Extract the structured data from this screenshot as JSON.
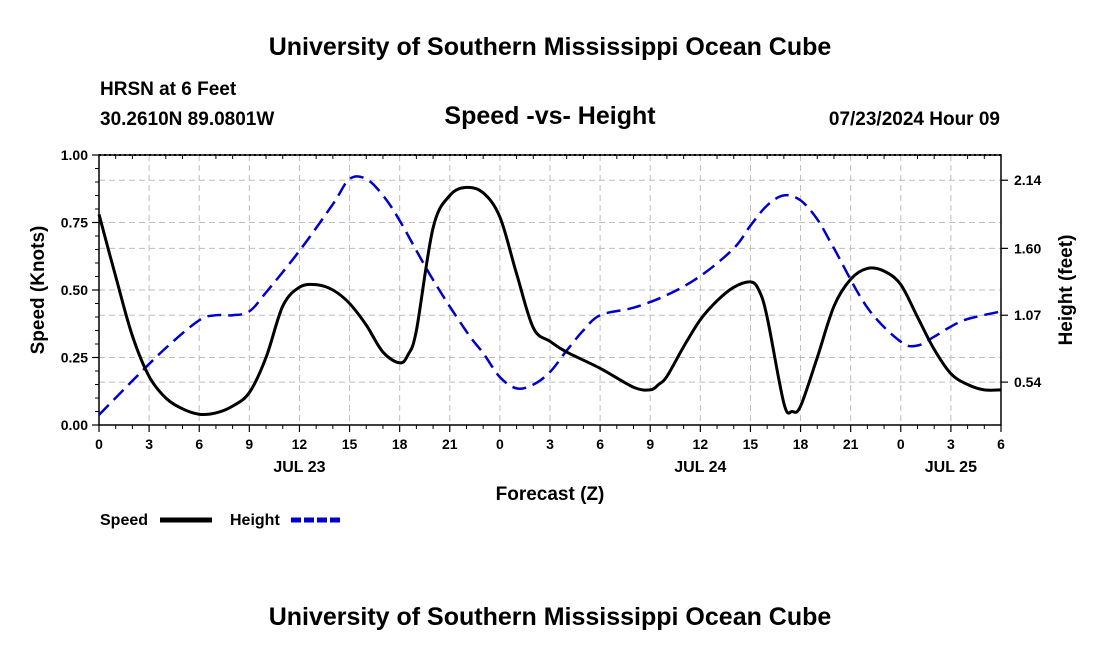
{
  "header": {
    "title": "University of Southern Mississippi Ocean Cube",
    "station": "HRSN at 6 Feet",
    "location": "30.2610N  89.0801W",
    "datetime": "07/23/2024 Hour 09",
    "footer_title": "University of Southern Mississippi Ocean Cube"
  },
  "chart_data": {
    "type": "line",
    "title": "Speed -vs- Height",
    "xlabel": "Forecast (Z)",
    "ylabel_left": "Speed (Knots)",
    "ylabel_right": "Height (feet)",
    "x_unit": "hours since JUL 23 00Z",
    "xlim": [
      0,
      54
    ],
    "ylim_left": [
      0,
      1.0
    ],
    "ylim_right": [
      0.2,
      2.34
    ],
    "x_ticks": [
      0,
      3,
      6,
      9,
      12,
      15,
      18,
      21,
      24,
      27,
      30,
      33,
      36,
      39,
      42,
      45,
      48,
      51,
      54
    ],
    "x_tick_labels": [
      "0",
      "3",
      "6",
      "9",
      "12",
      "15",
      "18",
      "21",
      "0",
      "3",
      "6",
      "9",
      "12",
      "15",
      "18",
      "21",
      "0",
      "3",
      "6"
    ],
    "y_ticks_left": [
      0.0,
      0.25,
      0.5,
      0.75,
      1.0
    ],
    "y_tick_labels_left": [
      "0.00",
      "0.25",
      "0.50",
      "0.75",
      "1.00"
    ],
    "y_ticks_right": [
      0.54,
      1.07,
      1.6,
      2.14
    ],
    "y_tick_labels_right": [
      "0.54",
      "1.07",
      "1.60",
      "2.14"
    ],
    "day_labels": [
      {
        "x": 12,
        "label": "JUL 23"
      },
      {
        "x": 36,
        "label": "JUL 24"
      },
      {
        "x": 51,
        "label": "JUL 25"
      }
    ],
    "grid": true,
    "legend_position": "bottom-left",
    "series": [
      {
        "name": "Speed",
        "axis": "left",
        "color": "#000000",
        "style": "solid",
        "x": [
          0,
          1,
          2,
          3,
          4,
          5,
          6,
          7,
          8,
          9,
          10,
          11,
          12,
          13,
          14,
          15,
          16,
          17,
          18,
          18.5,
          19,
          20,
          21,
          22,
          23,
          24,
          25,
          26,
          27,
          28,
          30,
          32,
          33,
          33.5,
          34,
          35,
          36,
          37,
          38,
          39,
          39.5,
          40,
          41,
          41.5,
          42,
          43,
          44,
          45,
          46,
          47,
          48,
          49,
          50,
          51,
          52,
          53,
          54
        ],
        "values": [
          0.78,
          0.55,
          0.33,
          0.18,
          0.1,
          0.06,
          0.04,
          0.045,
          0.07,
          0.12,
          0.25,
          0.44,
          0.51,
          0.52,
          0.5,
          0.45,
          0.37,
          0.27,
          0.23,
          0.26,
          0.35,
          0.73,
          0.85,
          0.88,
          0.86,
          0.77,
          0.56,
          0.36,
          0.31,
          0.27,
          0.21,
          0.14,
          0.13,
          0.15,
          0.18,
          0.29,
          0.39,
          0.46,
          0.51,
          0.53,
          0.5,
          0.4,
          0.08,
          0.05,
          0.07,
          0.25,
          0.44,
          0.54,
          0.58,
          0.57,
          0.52,
          0.4,
          0.28,
          0.19,
          0.15,
          0.13,
          0.13
        ]
      },
      {
        "name": "Height",
        "axis": "right",
        "color": "#0000cc",
        "style": "dashed",
        "x": [
          0,
          2,
          4,
          6,
          7,
          8,
          9,
          10,
          12,
          14,
          15,
          16,
          17,
          18,
          20,
          22,
          23,
          24,
          25,
          26,
          27,
          28,
          29,
          30,
          32,
          34,
          36,
          38,
          39,
          40,
          41,
          42,
          43,
          44,
          46,
          48,
          49,
          50,
          51,
          52,
          54
        ],
        "values": [
          0.28,
          0.55,
          0.81,
          1.03,
          1.07,
          1.07,
          1.1,
          1.25,
          1.58,
          1.95,
          2.15,
          2.15,
          2.02,
          1.82,
          1.35,
          0.94,
          0.77,
          0.58,
          0.49,
          0.52,
          0.62,
          0.79,
          0.95,
          1.07,
          1.13,
          1.23,
          1.38,
          1.6,
          1.78,
          1.94,
          2.02,
          1.98,
          1.83,
          1.6,
          1.13,
          0.86,
          0.83,
          0.9,
          0.98,
          1.04,
          1.1
        ]
      }
    ]
  }
}
